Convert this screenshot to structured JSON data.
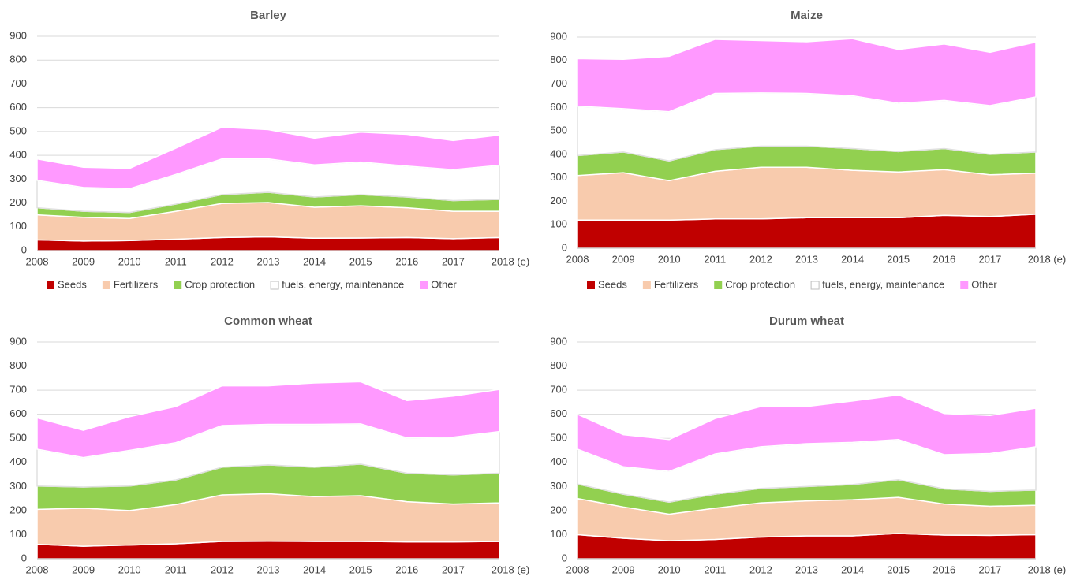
{
  "chart_data": [
    {
      "type": "stacked-area",
      "title": "Barley",
      "legend": true,
      "categories": [
        "2008",
        "2009",
        "2010",
        "2011",
        "2012",
        "2013",
        "2014",
        "2015",
        "2016",
        "2017",
        "2018 (e)"
      ],
      "ylim": [
        0,
        900
      ],
      "yticks": [
        0,
        100,
        200,
        300,
        400,
        500,
        600,
        700,
        800,
        900
      ],
      "grid": true,
      "series": [
        {
          "name": "Seeds",
          "color": "#c00000",
          "values": [
            45,
            40,
            42,
            48,
            55,
            58,
            52,
            53,
            55,
            50,
            55
          ]
        },
        {
          "name": "Fertilizers",
          "color": "#f8cbad",
          "values": [
            105,
            100,
            93,
            117,
            143,
            144,
            130,
            135,
            125,
            115,
            110
          ]
        },
        {
          "name": "Crop protection",
          "color": "#92d050",
          "values": [
            30,
            25,
            25,
            30,
            37,
            43,
            43,
            47,
            45,
            45,
            50
          ]
        },
        {
          "name": "fuels, energy, maintenance",
          "color": "#ffffff",
          "values": [
            115,
            100,
            100,
            125,
            150,
            140,
            135,
            137,
            130,
            130,
            143
          ]
        },
        {
          "name": "Other",
          "color": "#ff99ff",
          "values": [
            90,
            85,
            85,
            110,
            133,
            123,
            112,
            125,
            133,
            122,
            127
          ]
        }
      ]
    },
    {
      "type": "stacked-area",
      "title": "Maize",
      "legend": true,
      "categories": [
        "2008",
        "2009",
        "2010",
        "2011",
        "2012",
        "2013",
        "2014",
        "2015",
        "2016",
        "2017",
        "2018 (e)"
      ],
      "ylim": [
        0,
        900
      ],
      "yticks": [
        0,
        100,
        200,
        300,
        400,
        500,
        600,
        700,
        800,
        900
      ],
      "grid": true,
      "series": [
        {
          "name": "Seeds",
          "color": "#c00000",
          "values": [
            120,
            120,
            120,
            125,
            125,
            130,
            130,
            130,
            140,
            135,
            145
          ]
        },
        {
          "name": "Fertilizers",
          "color": "#f8cbad",
          "values": [
            190,
            202,
            168,
            203,
            220,
            215,
            202,
            195,
            195,
            178,
            175
          ]
        },
        {
          "name": "Crop protection",
          "color": "#92d050",
          "values": [
            85,
            88,
            84,
            92,
            90,
            90,
            93,
            87,
            90,
            87,
            90
          ]
        },
        {
          "name": "fuels, energy, maintenance",
          "color": "#ffffff",
          "values": [
            210,
            185,
            210,
            240,
            227,
            225,
            225,
            206,
            205,
            208,
            235
          ]
        },
        {
          "name": "Other",
          "color": "#ff99ff",
          "values": [
            203,
            210,
            236,
            230,
            223,
            220,
            243,
            229,
            240,
            227,
            233
          ]
        }
      ]
    },
    {
      "type": "stacked-area",
      "title": "Common wheat",
      "legend": false,
      "categories": [
        "2008",
        "2009",
        "2010",
        "2011",
        "2012",
        "2013",
        "2014",
        "2015",
        "2016",
        "2017",
        "2018 (e)"
      ],
      "ylim": [
        0,
        900
      ],
      "yticks": [
        0,
        100,
        200,
        300,
        400,
        500,
        600,
        700,
        800,
        900
      ],
      "grid": true,
      "series": [
        {
          "name": "Seeds",
          "color": "#c00000",
          "values": [
            60,
            52,
            57,
            62,
            72,
            73,
            72,
            72,
            70,
            70,
            72
          ]
        },
        {
          "name": "Fertilizers",
          "color": "#f8cbad",
          "values": [
            145,
            158,
            143,
            163,
            193,
            197,
            186,
            190,
            167,
            157,
            160
          ]
        },
        {
          "name": "Crop protection",
          "color": "#92d050",
          "values": [
            97,
            88,
            102,
            102,
            115,
            120,
            122,
            131,
            118,
            121,
            123
          ]
        },
        {
          "name": "fuels, energy, maintenance",
          "color": "#ffffff",
          "values": [
            153,
            122,
            148,
            155,
            173,
            168,
            178,
            167,
            147,
            157,
            173
          ]
        },
        {
          "name": "Other",
          "color": "#ff99ff",
          "values": [
            130,
            113,
            140,
            150,
            165,
            160,
            172,
            175,
            155,
            170,
            175
          ]
        }
      ]
    },
    {
      "type": "stacked-area",
      "title": "Durum wheat",
      "legend": false,
      "categories": [
        "2008",
        "2009",
        "2010",
        "2011",
        "2012",
        "2013",
        "2014",
        "2015",
        "2016",
        "2017",
        "2018 (e)"
      ],
      "ylim": [
        0,
        900
      ],
      "yticks": [
        0,
        100,
        200,
        300,
        400,
        500,
        600,
        700,
        800,
        900
      ],
      "grid": true,
      "series": [
        {
          "name": "Seeds",
          "color": "#c00000",
          "values": [
            100,
            85,
            75,
            80,
            90,
            95,
            95,
            105,
            98,
            97,
            100
          ]
        },
        {
          "name": "Fertilizers",
          "color": "#f8cbad",
          "values": [
            150,
            130,
            110,
            130,
            142,
            145,
            150,
            150,
            129,
            121,
            122
          ]
        },
        {
          "name": "Crop protection",
          "color": "#92d050",
          "values": [
            60,
            53,
            50,
            58,
            60,
            60,
            63,
            73,
            63,
            62,
            63
          ]
        },
        {
          "name": "fuels, energy, maintenance",
          "color": "#ffffff",
          "values": [
            145,
            114,
            128,
            167,
            173,
            178,
            175,
            167,
            142,
            157,
            180
          ]
        },
        {
          "name": "Other",
          "color": "#ff99ff",
          "values": [
            145,
            133,
            132,
            147,
            167,
            154,
            172,
            185,
            171,
            158,
            160
          ]
        }
      ]
    }
  ]
}
